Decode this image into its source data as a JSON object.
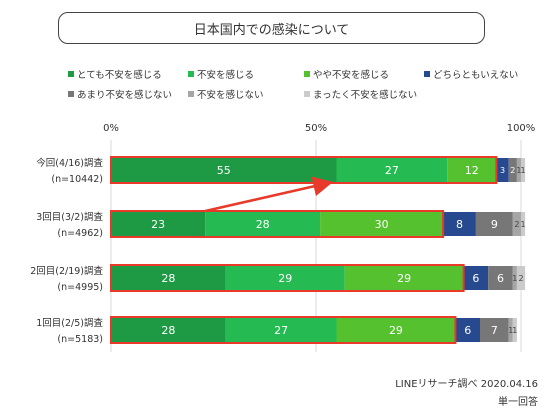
{
  "title": "日本国内での感染について",
  "footer": {
    "source": "LINEリサーチ調べ 2020.04.16",
    "note": "単一回答"
  },
  "colors": [
    "#1e9a45",
    "#25bb52",
    "#55c12e",
    "#27498f",
    "#777777",
    "#a6a6a6",
    "#cbcbcb"
  ],
  "highlight_color": "#e8392b",
  "chart_data": {
    "type": "bar",
    "orientation": "horizontal",
    "stacked": true,
    "percent": true,
    "xlim": [
      0,
      100
    ],
    "xticks": [
      "0%",
      "50%",
      "100%"
    ],
    "legend_position": "top",
    "categories": [
      [
        "今回(4/16)調査",
        "(n=10442)"
      ],
      [
        "3回目(3/2)調査",
        "(n=4962)"
      ],
      [
        "2回目(2/19)調査",
        "(n=4995)"
      ],
      [
        "1回目(2/5)調査",
        "(n=5183)"
      ]
    ],
    "series": [
      {
        "name": "とても不安を感じる",
        "values": [
          55,
          23,
          28,
          28
        ]
      },
      {
        "name": "不安を感じる",
        "values": [
          27,
          28,
          29,
          27
        ]
      },
      {
        "name": "やや不安を感じる",
        "values": [
          12,
          30,
          29,
          29
        ]
      },
      {
        "name": "どちらともいえない",
        "values": [
          3,
          8,
          6,
          6
        ]
      },
      {
        "name": "あまり不安を感じない",
        "values": [
          2,
          9,
          6,
          7
        ]
      },
      {
        "name": "不安を感じない",
        "values": [
          1,
          2,
          1,
          1
        ]
      },
      {
        "name": "まったく不安を感じない",
        "values": [
          1,
          1,
          2,
          1
        ]
      }
    ],
    "highlighted_series": 3,
    "annotation": {
      "type": "arrow",
      "from_category": 1,
      "to_category": 0
    }
  }
}
